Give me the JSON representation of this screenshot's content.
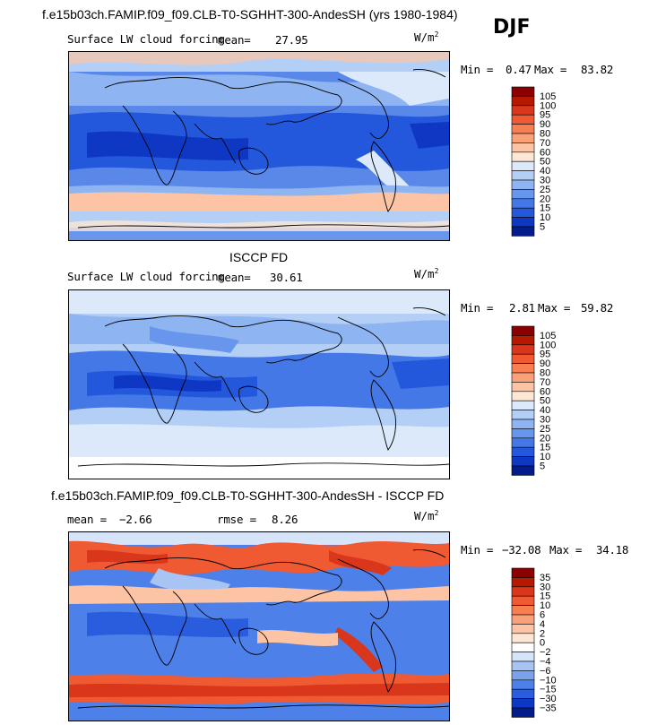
{
  "chart_data": [
    {
      "type": "heatmap",
      "title": "f.e15b03ch.FAMIP.f09_f09.CLB-T0-SGHHT-300-AndesSH (yrs 1980-1984)",
      "season": "DJF",
      "variable": "Surface LW cloud forcing",
      "mean_label": "mean=",
      "mean": "27.95",
      "units": "W/m",
      "units_exp": "2",
      "min_label": "Min =",
      "min": "0.47",
      "max_label": "Max =",
      "max": "83.82",
      "colorbar_levels": [
        "105",
        "100",
        "95",
        "90",
        "80",
        "70",
        "60",
        "50",
        "40",
        "30",
        "25",
        "20",
        "15",
        "10",
        "5"
      ],
      "colorbar_colors": [
        "#8b0000",
        "#b51a00",
        "#d9361c",
        "#ef5a32",
        "#f77f52",
        "#fba17a",
        "#fcc4a4",
        "#fde6d4",
        "#dbe9fb",
        "#b4cff6",
        "#8eb4f2",
        "#6796ec",
        "#4478e6",
        "#2458dc",
        "#0e38c4",
        "#021c8c"
      ]
    },
    {
      "type": "heatmap",
      "title": "ISCCP FD",
      "variable": "Surface LW cloud forcing",
      "mean_label": "mean=",
      "mean": "30.61",
      "units": "W/m",
      "units_exp": "2",
      "min_label": "Min =",
      "min": "2.81",
      "max_label": "Max =",
      "max": "59.82",
      "colorbar_levels": [
        "105",
        "100",
        "95",
        "90",
        "80",
        "70",
        "60",
        "50",
        "40",
        "30",
        "25",
        "20",
        "15",
        "10",
        "5"
      ],
      "colorbar_colors": [
        "#8b0000",
        "#b51a00",
        "#d9361c",
        "#ef5a32",
        "#f77f52",
        "#fba17a",
        "#fcc4a4",
        "#fde6d4",
        "#dbe9fb",
        "#b4cff6",
        "#8eb4f2",
        "#6796ec",
        "#4478e6",
        "#2458dc",
        "#0e38c4",
        "#021c8c"
      ]
    },
    {
      "type": "heatmap",
      "title": "f.e15b03ch.FAMIP.f09_f09.CLB-T0-SGHHT-300-AndesSH - ISCCP FD",
      "mean_label": "mean =",
      "mean": "−2.66",
      "rmse_label": "rmse =",
      "rmse": "8.26",
      "units": "W/m",
      "units_exp": "2",
      "min_label": "Min =",
      "min": "−32.08",
      "max_label": "Max =",
      "max": "34.18",
      "colorbar_levels": [
        "35",
        "30",
        "15",
        "10",
        "6",
        "4",
        "2",
        "0",
        "−2",
        "−4",
        "−6",
        "−10",
        "−15",
        "−30",
        "−35"
      ],
      "colorbar_colors": [
        "#8b0000",
        "#b51a00",
        "#d9361c",
        "#ef5a32",
        "#f77f52",
        "#fba17a",
        "#fcc4a4",
        "#fde6d4",
        "#ffffff",
        "#d6e4fa",
        "#a8c4f4",
        "#7aa3ee",
        "#4d80e8",
        "#2a5cde",
        "#0e38c4",
        "#021c8c"
      ]
    }
  ],
  "colors": {
    "ocean_tropics": "#1f55d8",
    "ocean_mid": "#5a88e8",
    "pale_blue": "#c9dcf8",
    "peach": "#fbd1b8",
    "orange_red": "#ef5a32",
    "coast": "#000000"
  }
}
